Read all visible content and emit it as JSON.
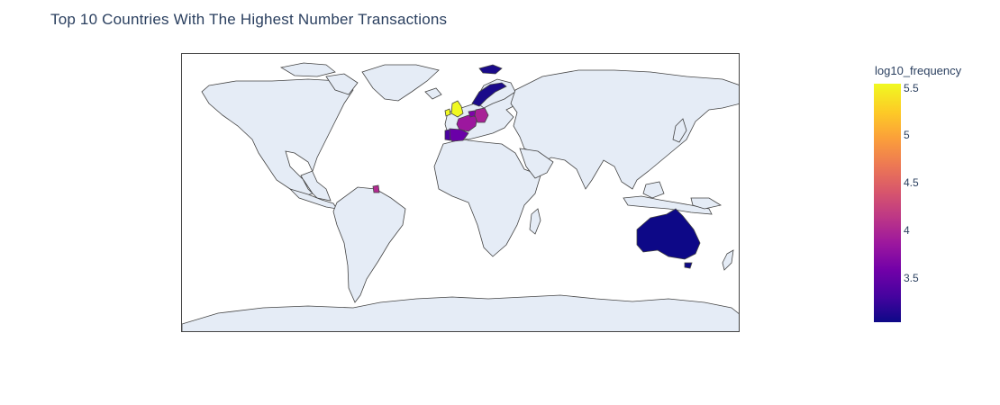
{
  "title": "Top 10 Countries With The Highest Number Transactions",
  "colors": {
    "land": "#e5ecf6",
    "coastline": "#444444",
    "australia": "#0d0887",
    "uk": "#f0f921",
    "france": "#9c179e",
    "germany": "#a82296",
    "spain": "#6a00a8",
    "portugal": "#4c02a1",
    "belgium": "#7e03a8",
    "norway": "#1a0a8a",
    "guiana": "#b12a90"
  },
  "colorbar": {
    "title": "log10_frequency",
    "ticks": [
      "5.5",
      "5",
      "4.5",
      "4",
      "3.5"
    ]
  },
  "chart_data": {
    "type": "choropleth",
    "z_title": "log10_frequency",
    "z_range": [
      3.0,
      5.55
    ],
    "colorscale": "plasma"
  }
}
